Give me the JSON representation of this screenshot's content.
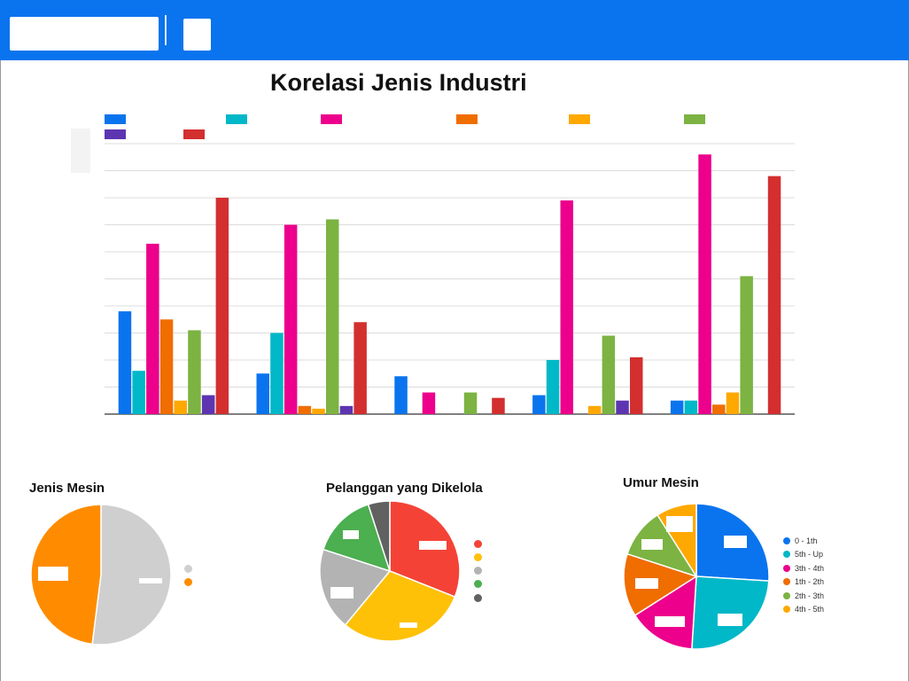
{
  "header": {
    "logo": "",
    "menu": ""
  },
  "colors": {
    "header": "#0a74ee",
    "series": [
      "#0a74ee",
      "#00b8c8",
      "#ec008c",
      "#f06d00",
      "#ffa800",
      "#7cb342",
      "#5e35b1",
      "#d32f2f"
    ]
  },
  "chart_data": [
    {
      "type": "bar",
      "title": "Korelasi Jenis Industri",
      "categories": [
        "",
        "",
        "",
        "",
        ""
      ],
      "series": [
        {
          "values": [
            38,
            15,
            14,
            7,
            5
          ]
        },
        {
          "values": [
            16,
            30,
            0,
            20,
            5
          ]
        },
        {
          "values": [
            63,
            70,
            8,
            79,
            96
          ]
        },
        {
          "values": [
            35,
            3,
            0,
            0,
            3.5
          ]
        },
        {
          "values": [
            5,
            2,
            0,
            3,
            8
          ]
        },
        {
          "values": [
            31,
            72,
            8,
            29,
            51
          ]
        },
        {
          "values": [
            7,
            3,
            0,
            5,
            0
          ]
        },
        {
          "values": [
            80,
            34,
            6,
            21,
            88
          ]
        }
      ],
      "ylim": [
        0,
        100
      ],
      "grid": true,
      "legend": "top"
    },
    {
      "type": "pie",
      "title": "Jenis Mesin",
      "values": [
        52,
        48
      ],
      "colors": [
        "#cfcfcf",
        "#ff8c00"
      ],
      "legend": "right"
    },
    {
      "type": "pie",
      "title": "Pelanggan yang Dikelola",
      "values": [
        31,
        30,
        19,
        15,
        5
      ],
      "colors": [
        "#f44336",
        "#ffc107",
        "#b3b3b3",
        "#4caf50",
        "#616161"
      ],
      "legend": "right"
    },
    {
      "type": "pie",
      "title": "Umur Mesin",
      "categories": [
        "0 - 1th",
        "5th - Up",
        "3th - 4th",
        "1th - 2th",
        "2th - 3th",
        "4th - 5th"
      ],
      "values": [
        26,
        25,
        15,
        14,
        11,
        9
      ],
      "colors": [
        "#0a74ee",
        "#00b8c8",
        "#ec008c",
        "#f06d00",
        "#7cb342",
        "#ffa800"
      ],
      "legend": "right"
    }
  ]
}
